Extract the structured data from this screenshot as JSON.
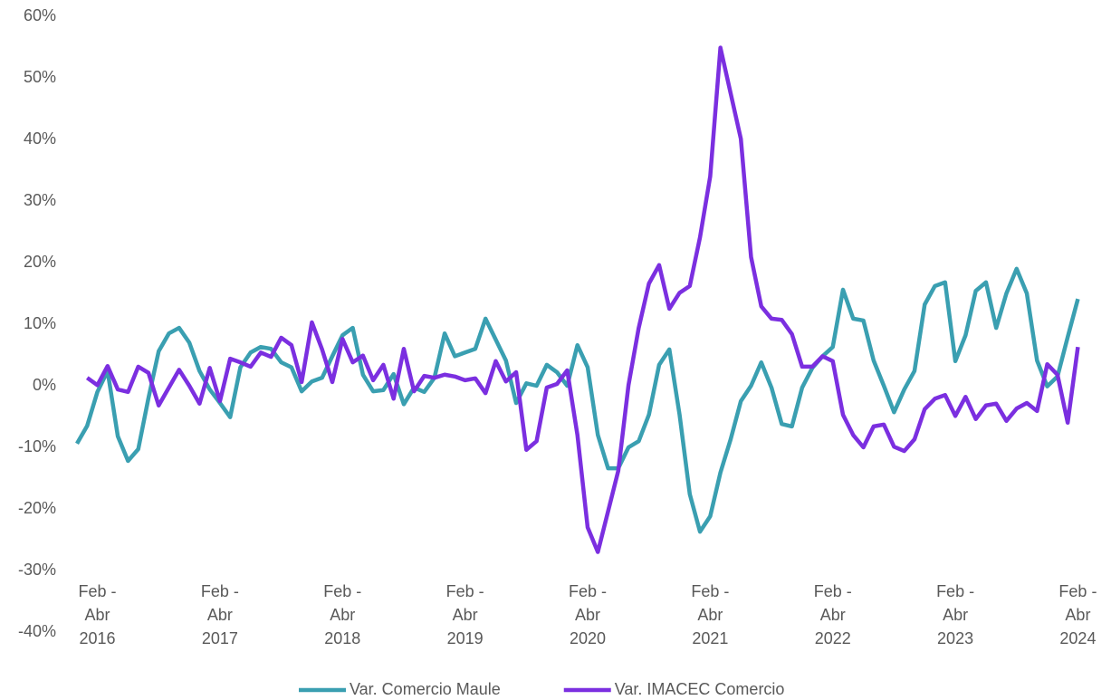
{
  "chart_data": {
    "type": "line",
    "categories": [
      null,
      null,
      "Feb - Abr 2016",
      null,
      null,
      null,
      null,
      null,
      null,
      null,
      null,
      null,
      null,
      null,
      "Feb - Abr 2017",
      null,
      null,
      null,
      null,
      null,
      null,
      null,
      null,
      null,
      null,
      null,
      "Feb - Abr 2018",
      null,
      null,
      null,
      null,
      null,
      null,
      null,
      null,
      null,
      null,
      null,
      "Feb - Abr 2019",
      null,
      null,
      null,
      null,
      null,
      null,
      null,
      null,
      null,
      null,
      null,
      "Feb - Abr 2020",
      null,
      null,
      null,
      null,
      null,
      null,
      null,
      null,
      null,
      null,
      null,
      "Feb - Abr 2021",
      null,
      null,
      null,
      null,
      null,
      null,
      null,
      null,
      null,
      null,
      null,
      "Feb - Abr 2022",
      null,
      null,
      null,
      null,
      null,
      null,
      null,
      null,
      null,
      null,
      null,
      "Feb - Abr 2023",
      null,
      null,
      null,
      null,
      null,
      null,
      null,
      null,
      null,
      null,
      null,
      "Feb - Abr 2024"
    ],
    "series": [
      {
        "name": "Var. Comercio Maule",
        "color": "#3a9fb1",
        "values": [
          -9.4,
          -6.5,
          -1,
          2.4,
          -8.2,
          -12.2,
          -10.3,
          -2,
          5.6,
          8.5,
          9.4,
          7,
          2.4,
          -0.6,
          -2.8,
          -5.1,
          3,
          5.4,
          6.3,
          6,
          3.8,
          3,
          -0.9,
          0.7,
          1.3,
          4.8,
          8.2,
          9.4,
          1.8,
          -0.9,
          -0.7,
          1.9,
          -3,
          -0.3,
          -1,
          1.3,
          8.5,
          4.8,
          5.4,
          6,
          10.9,
          7.5,
          4.1,
          -2.8,
          0.4,
          0,
          3.4,
          2.2,
          0,
          6.6,
          3,
          -8,
          -13.4,
          -13.4,
          -10,
          -9,
          -4.7,
          3.4,
          5.9,
          -4.7,
          -17.6,
          -23.7,
          -21.2,
          -14.1,
          -8.7,
          -2.5,
          0,
          3.8,
          -0.3,
          -6.2,
          -6.6,
          -0.3,
          2.9,
          4.8,
          6.3,
          15.6,
          10.9,
          10.6,
          4.1,
          0,
          -4.3,
          -0.6,
          2.4,
          13.2,
          16.2,
          16.8,
          4,
          8.2,
          15.4,
          16.8,
          9.4,
          15,
          19,
          15,
          4.1,
          -0.1,
          1.5,
          7.9,
          14.1
        ]
      },
      {
        "name": "Var. IMACEC Comercio",
        "color": "#7b2fe0",
        "values": [
          null,
          1.3,
          0.1,
          3.2,
          -0.6,
          -1,
          3.1,
          2.1,
          -3.2,
          -0.3,
          2.6,
          0,
          -2.9,
          2.9,
          -2.5,
          4.4,
          3.8,
          3.1,
          5.4,
          4.7,
          7.8,
          6.6,
          0.6,
          10.3,
          5.9,
          0.6,
          7.6,
          3.8,
          4.9,
          0.9,
          3.4,
          -2.1,
          6,
          -0.9,
          1.6,
          1.3,
          1.8,
          1.5,
          0.9,
          1.2,
          -1.2,
          4,
          0.7,
          2.2,
          -10.4,
          -9,
          -0.3,
          0.3,
          2.5,
          -8,
          -23,
          -27,
          -20.4,
          -13.8,
          0.1,
          9.4,
          16.6,
          19.6,
          12.5,
          15.1,
          16.2,
          24.1,
          34,
          54.9,
          47.5,
          40.1,
          20.9,
          12.9,
          10.9,
          10.7,
          8.4,
          3.1,
          3.1,
          4.8,
          4,
          -4.7,
          -8,
          -10,
          -6.6,
          -6.3,
          -9.9,
          -10.6,
          -8.7,
          -3.8,
          -2.1,
          -1.5,
          -4.9,
          -1.8,
          -5.4,
          -3.2,
          -2.9,
          -5.7,
          -3.7,
          -2.8,
          -4.1,
          3.5,
          1.8,
          -6,
          6.3
        ]
      }
    ],
    "ylim": [
      -40,
      60
    ],
    "yticks": [
      {
        "value": -40,
        "label": "-40%"
      },
      {
        "value": -30,
        "label": "-30%"
      },
      {
        "value": -20,
        "label": "-20%"
      },
      {
        "value": -10,
        "label": "-10%"
      },
      {
        "value": 0,
        "label": "0%"
      },
      {
        "value": 10,
        "label": "10%"
      },
      {
        "value": 20,
        "label": "20%"
      },
      {
        "value": 30,
        "label": "30%"
      },
      {
        "value": 40,
        "label": "40%"
      },
      {
        "value": 50,
        "label": "50%"
      },
      {
        "value": 60,
        "label": "60%"
      }
    ],
    "grid": false,
    "legend": "bottom"
  }
}
